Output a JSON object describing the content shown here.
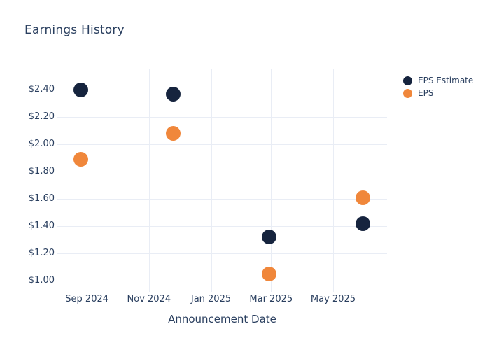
{
  "chart_data": {
    "type": "scatter",
    "title": "Earnings History",
    "xlabel": "Announcement Date",
    "ylabel": "",
    "grid": true,
    "legend_position": "top-right-outside",
    "marker_size_px": 21,
    "colors": {
      "text": "#2a3f5f",
      "grid": "#e9edf5",
      "background": "#ffffff",
      "eps_estimate": "#16243e",
      "eps": "#f0873b"
    },
    "series": [
      {
        "name": "EPS Estimate",
        "color": "#16243e",
        "points": [
          {
            "x": "2024-08-26",
            "y": 2.4
          },
          {
            "x": "2024-11-25",
            "y": 2.37
          },
          {
            "x": "2025-02-27",
            "y": 1.32
          },
          {
            "x": "2025-05-30",
            "y": 1.42
          }
        ]
      },
      {
        "name": "EPS",
        "color": "#f0873b",
        "points": [
          {
            "x": "2024-08-26",
            "y": 1.89
          },
          {
            "x": "2024-11-25",
            "y": 2.08
          },
          {
            "x": "2025-02-27",
            "y": 1.05
          },
          {
            "x": "2025-05-30",
            "y": 1.61
          }
        ]
      }
    ],
    "x_ticks": [
      {
        "date": "2024-09-01",
        "label": "Sep 2024"
      },
      {
        "date": "2024-11-01",
        "label": "Nov 2024"
      },
      {
        "date": "2025-01-01",
        "label": "Jan 2025"
      },
      {
        "date": "2025-03-01",
        "label": "Mar 2025"
      },
      {
        "date": "2025-05-01",
        "label": "May 2025"
      }
    ],
    "y_ticks": [
      {
        "value": 1.0,
        "label": "$1.00"
      },
      {
        "value": 1.2,
        "label": "$1.20"
      },
      {
        "value": 1.4,
        "label": "$1.40"
      },
      {
        "value": 1.6,
        "label": "$1.60"
      },
      {
        "value": 1.8,
        "label": "$1.80"
      },
      {
        "value": 2.0,
        "label": "$2.00"
      },
      {
        "value": 2.2,
        "label": "$2.20"
      },
      {
        "value": 2.4,
        "label": "$2.40"
      }
    ],
    "xlim": [
      "2024-08-03",
      "2025-06-23"
    ],
    "ylim": [
      0.92,
      2.55
    ]
  }
}
